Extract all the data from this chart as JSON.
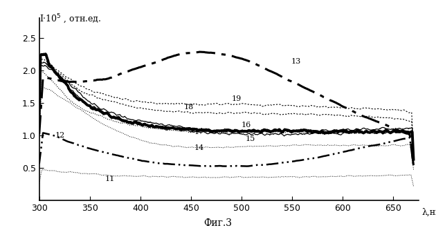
{
  "xlabel": "λ,нм",
  "ylabel": "I·10⁵ , отн.ед.",
  "xmin": 300,
  "xmax": 675,
  "ymin": 0.0,
  "ymax": 2.8,
  "yticks": [
    0.5,
    1.0,
    1.5,
    2.0,
    2.5
  ],
  "xticks": [
    300,
    350,
    400,
    450,
    500,
    550,
    600,
    650
  ],
  "caption": "Фиг.3",
  "background_color": "#ffffff"
}
